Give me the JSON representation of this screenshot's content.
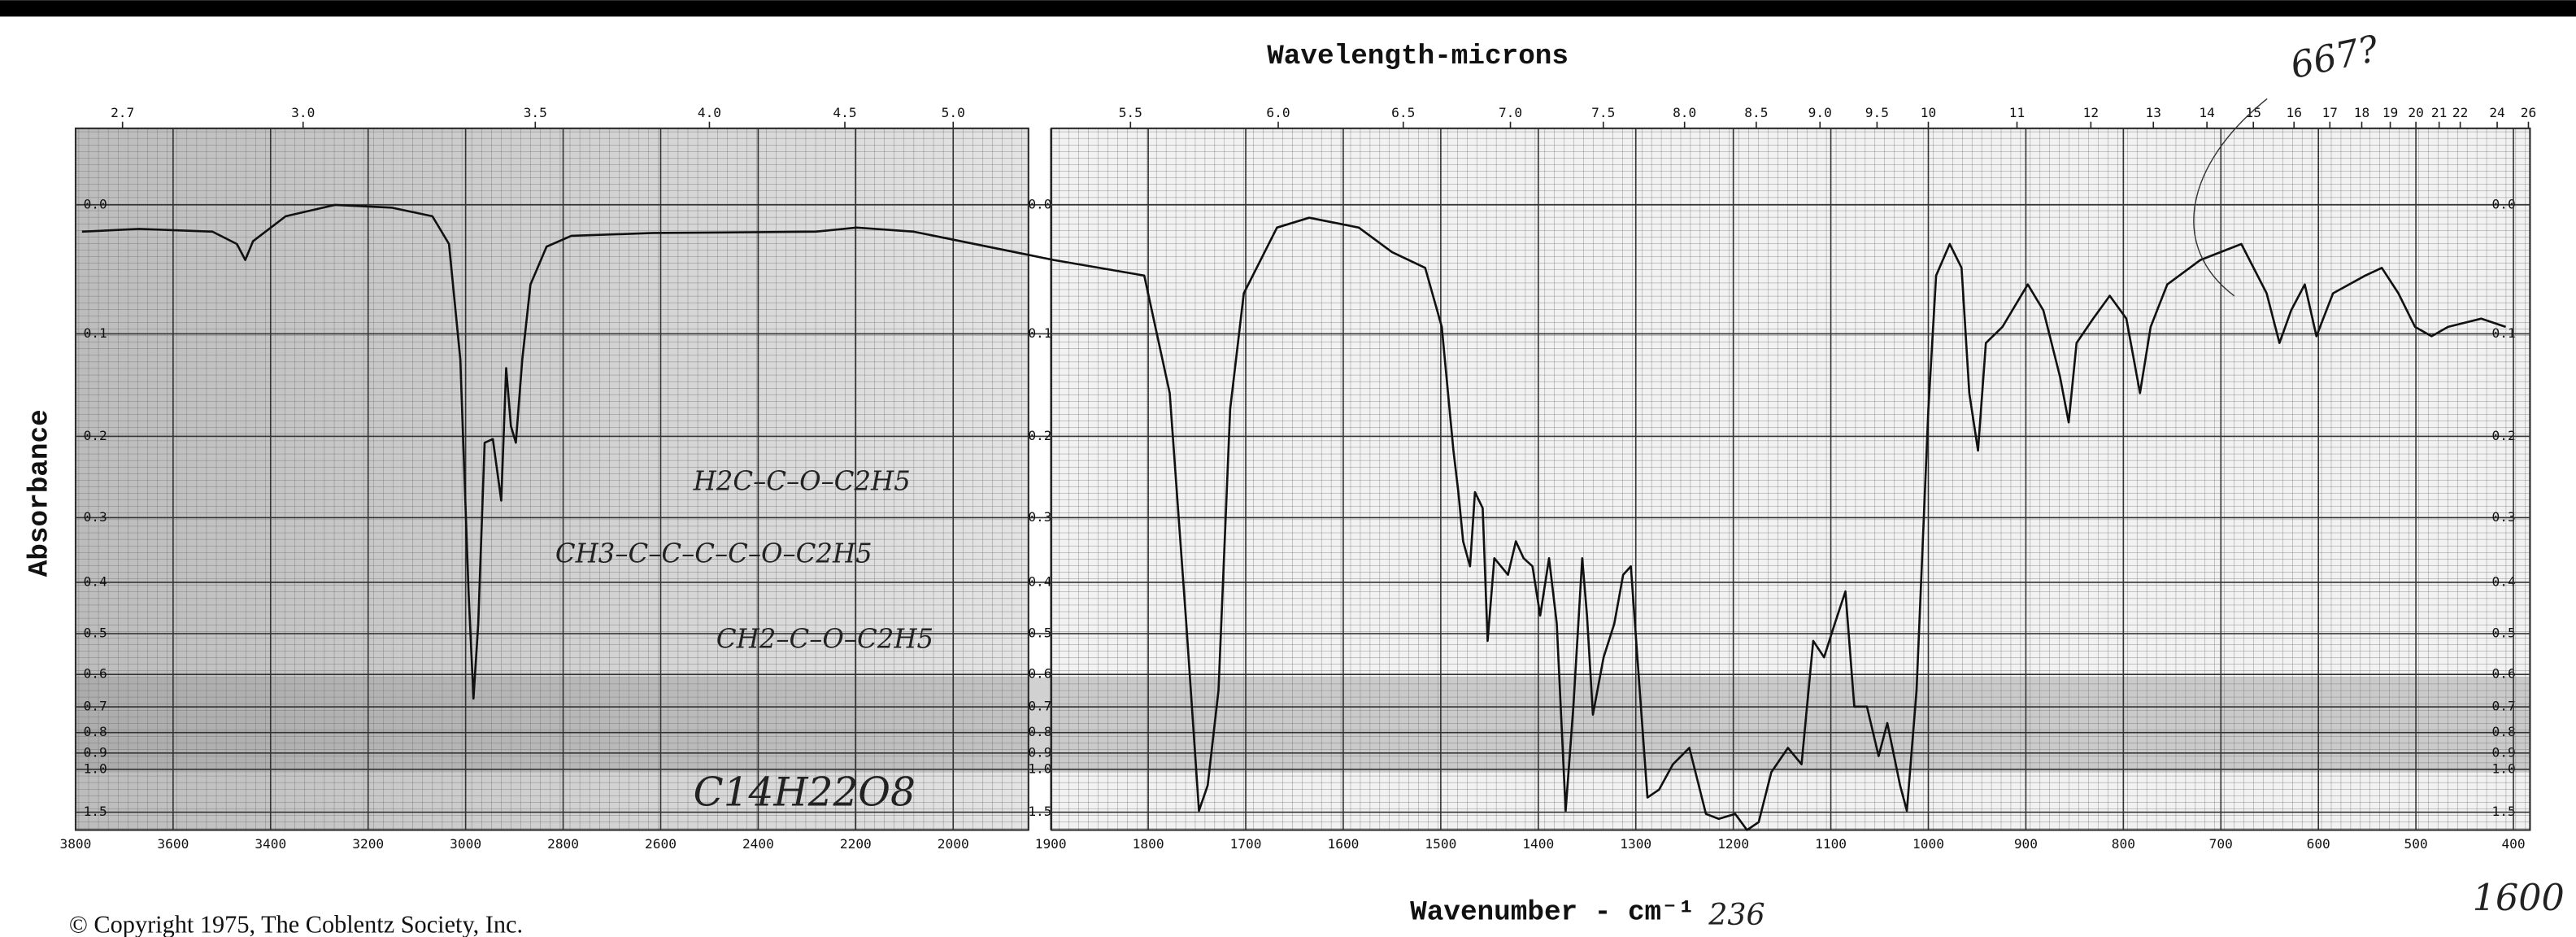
{
  "chart_data": {
    "type": "line",
    "title": "Wavelength-microns",
    "x_label": "Wavenumber - cm⁻¹",
    "y_label": "Absorbance",
    "copyright": "© Copyright 1975, The Coblentz Society, Inc.",
    "annotations": [
      "667?",
      "1600",
      "236",
      "C14H22O8",
      "H2C–C–O–C2H5",
      "CH3–C–C–C–C–O–C2H5",
      "CH2–C–O–C2H5"
    ],
    "color": "#111111",
    "xlim": [
      3800,
      383
    ],
    "xbreak": 2000,
    "ylim": [
      -0.05,
      2.5
    ],
    "yscale": "transmittance",
    "grid": true,
    "xticks": [
      3800,
      3600,
      3400,
      3200,
      3000,
      2800,
      2600,
      2400,
      2200,
      2000,
      1900,
      1800,
      1700,
      1600,
      1500,
      1400,
      1300,
      1200,
      1100,
      1000,
      900,
      800,
      700,
      600,
      500,
      400
    ],
    "x2ticks": [
      2.7,
      {
        "value": 3,
        "label": "3.0"
      },
      3.5,
      {
        "value": 4,
        "label": "4.0"
      },
      4.5,
      {
        "value": 5,
        "label": "5.0"
      },
      5.5,
      {
        "value": 6,
        "label": "6.0"
      },
      6.5,
      {
        "value": 7,
        "label": "7.0"
      },
      7.5,
      {
        "value": 8,
        "label": "8.0"
      },
      8.5,
      {
        "value": 9,
        "label": "9.0"
      },
      9.5,
      10,
      11,
      12,
      13,
      14,
      15,
      16,
      17,
      18,
      19,
      20,
      21,
      22,
      24,
      26
    ],
    "yticks": [
      {
        "value": 0,
        "label": "0.0"
      },
      0.1,
      0.2,
      0.3,
      0.4,
      0.5,
      0.6,
      0.7,
      0.8,
      0.9,
      {
        "value": 1,
        "label": "1.0"
      },
      1.5
    ],
    "x": [
      3787,
      3670,
      3519,
      3469,
      3452,
      3436,
      3369,
      3268,
      3151,
      3068,
      3034,
      3011,
      2994,
      2984,
      2974,
      2961,
      2944,
      2927,
      2917,
      2907,
      2897,
      2884,
      2867,
      2834,
      2783,
      2616,
      2282,
      2198,
      2081,
      1897,
      1804,
      1778,
      1761,
      1748,
      1739,
      1728,
      1716,
      1702,
      1668,
      1635,
      1584,
      1550,
      1516,
      1499,
      1487,
      1482,
      1477,
      1470,
      1465,
      1457,
      1452,
      1445,
      1431,
      1423,
      1415,
      1406,
      1398,
      1389,
      1381,
      1372,
      1364,
      1355,
      1350,
      1344,
      1333,
      1322,
      1313,
      1305,
      1296,
      1288,
      1276,
      1262,
      1245,
      1228,
      1215,
      1198,
      1186,
      1174,
      1161,
      1144,
      1130,
      1118,
      1107,
      1096,
      1085,
      1076,
      1063,
      1051,
      1042,
      1029,
      1022,
      1012,
      1000,
      992,
      978,
      966,
      958,
      949,
      941,
      924,
      898,
      882,
      865,
      856,
      848,
      831,
      814,
      797,
      783,
      772,
      755,
      721,
      679,
      653,
      640,
      628,
      614,
      602,
      585,
      552,
      535,
      518,
      501,
      484,
      467,
      433,
      408
    ],
    "values": [
      0.019,
      0.017,
      0.019,
      0.028,
      0.04,
      0.026,
      0.008,
      0.0,
      0.002,
      0.008,
      0.028,
      0.123,
      0.416,
      0.672,
      0.479,
      0.207,
      0.203,
      0.277,
      0.131,
      0.189,
      0.207,
      0.123,
      0.059,
      0.03,
      0.022,
      0.02,
      0.019,
      0.016,
      0.019,
      0.04,
      0.052,
      0.155,
      0.479,
      1.47,
      1.13,
      0.646,
      0.171,
      0.066,
      0.016,
      0.009,
      0.016,
      0.034,
      0.046,
      0.094,
      0.216,
      0.266,
      0.334,
      0.373,
      0.266,
      0.287,
      0.516,
      0.36,
      0.387,
      0.334,
      0.36,
      0.373,
      0.462,
      0.36,
      0.479,
      1.47,
      0.699,
      0.36,
      0.462,
      0.728,
      0.555,
      0.479,
      0.387,
      0.373,
      0.646,
      1.26,
      1.17,
      0.967,
      0.872,
      1.54,
      1.68,
      1.54,
      2.5,
      1.8,
      1.02,
      0.872,
      0.967,
      0.516,
      0.555,
      0.479,
      0.416,
      0.699,
      0.699,
      0.917,
      0.76,
      1.13,
      1.47,
      0.646,
      0.171,
      0.052,
      0.028,
      0.046,
      0.155,
      0.216,
      0.108,
      0.094,
      0.059,
      0.08,
      0.139,
      0.185,
      0.108,
      0.087,
      0.068,
      0.087,
      0.155,
      0.094,
      0.059,
      0.04,
      0.028,
      0.066,
      0.108,
      0.08,
      0.059,
      0.102,
      0.066,
      0.052,
      0.046,
      0.066,
      0.094,
      0.102,
      0.094,
      0.087,
      0.094
    ]
  }
}
